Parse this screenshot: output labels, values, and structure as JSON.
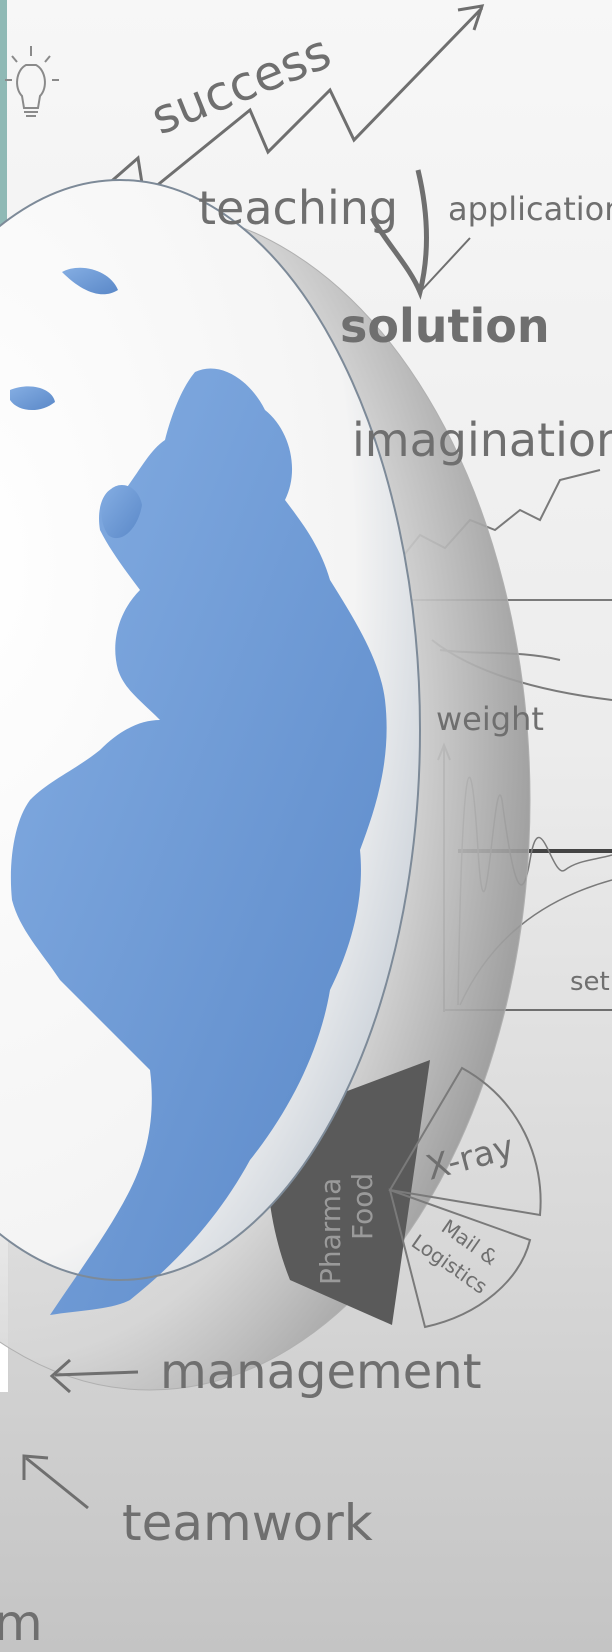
{
  "words": {
    "success": "success",
    "teaching": "teaching",
    "application": "application",
    "solution": "solution",
    "imagination": "imagination",
    "weight": "weight",
    "set": "set",
    "pharma": "Pharma",
    "food": "Food",
    "xray": "X-ray",
    "mail": "Mail &",
    "logistics": "Logistics",
    "management": "management",
    "teamwork": "teamwork",
    "partial_m": "m"
  },
  "colors": {
    "background_top": "#f7f7f7",
    "background_bottom": "#c4c4c4",
    "ink": "#6f6f6f",
    "globe_land": "#6f9bd6",
    "globe_ocean": "#ffffff",
    "dark_sector": "#5a5a5a",
    "left_bar": "#8fb9b5"
  },
  "icons": [
    "lightbulb-icon"
  ]
}
